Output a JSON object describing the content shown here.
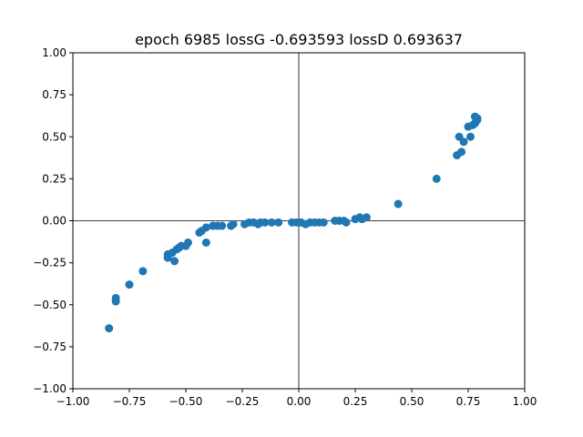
{
  "chart_data": {
    "type": "scatter",
    "title": "epoch 6985 lossG -0.693593 lossD 0.693637",
    "xlabel": "",
    "ylabel": "",
    "xlim": [
      -1.0,
      1.0
    ],
    "ylim": [
      -1.0,
      1.0
    ],
    "xticks": [
      "−1.00",
      "−0.75",
      "−0.50",
      "−0.25",
      "0.00",
      "0.25",
      "0.50",
      "0.75",
      "1.00"
    ],
    "yticks": [
      "−1.00",
      "−0.75",
      "−0.50",
      "−0.25",
      "0.00",
      "0.25",
      "0.50",
      "0.75",
      "1.00"
    ],
    "grid": false,
    "reference_lines": [
      "x=0",
      "y=0"
    ],
    "marker_color": "#1f77b4",
    "points": [
      [
        -0.84,
        -0.64
      ],
      [
        -0.81,
        -0.46
      ],
      [
        -0.81,
        -0.48
      ],
      [
        -0.75,
        -0.38
      ],
      [
        -0.69,
        -0.3
      ],
      [
        -0.58,
        -0.22
      ],
      [
        -0.58,
        -0.2
      ],
      [
        -0.56,
        -0.19
      ],
      [
        -0.55,
        -0.24
      ],
      [
        -0.54,
        -0.17
      ],
      [
        -0.53,
        -0.16
      ],
      [
        -0.52,
        -0.15
      ],
      [
        -0.5,
        -0.15
      ],
      [
        -0.49,
        -0.13
      ],
      [
        -0.44,
        -0.07
      ],
      [
        -0.43,
        -0.06
      ],
      [
        -0.41,
        -0.13
      ],
      [
        -0.41,
        -0.04
      ],
      [
        -0.38,
        -0.03
      ],
      [
        -0.36,
        -0.03
      ],
      [
        -0.34,
        -0.03
      ],
      [
        -0.3,
        -0.03
      ],
      [
        -0.29,
        -0.02
      ],
      [
        -0.24,
        -0.02
      ],
      [
        -0.22,
        -0.01
      ],
      [
        -0.2,
        -0.01
      ],
      [
        -0.18,
        -0.02
      ],
      [
        -0.17,
        -0.01
      ],
      [
        -0.15,
        -0.01
      ],
      [
        -0.12,
        -0.01
      ],
      [
        -0.09,
        -0.01
      ],
      [
        -0.03,
        -0.01
      ],
      [
        -0.01,
        -0.01
      ],
      [
        0.01,
        -0.01
      ],
      [
        0.03,
        -0.02
      ],
      [
        0.05,
        -0.01
      ],
      [
        0.07,
        -0.01
      ],
      [
        0.09,
        -0.01
      ],
      [
        0.11,
        -0.01
      ],
      [
        0.16,
        0.0
      ],
      [
        0.18,
        0.0
      ],
      [
        0.2,
        0.0
      ],
      [
        0.21,
        -0.01
      ],
      [
        0.25,
        0.01
      ],
      [
        0.27,
        0.02
      ],
      [
        0.28,
        0.01
      ],
      [
        0.3,
        0.02
      ],
      [
        0.44,
        0.1
      ],
      [
        0.61,
        0.25
      ],
      [
        0.7,
        0.39
      ],
      [
        0.71,
        0.5
      ],
      [
        0.72,
        0.41
      ],
      [
        0.73,
        0.47
      ],
      [
        0.75,
        0.56
      ],
      [
        0.76,
        0.5
      ],
      [
        0.77,
        0.57
      ],
      [
        0.78,
        0.58
      ],
      [
        0.78,
        0.62
      ],
      [
        0.79,
        0.6
      ],
      [
        0.79,
        0.61
      ]
    ]
  }
}
